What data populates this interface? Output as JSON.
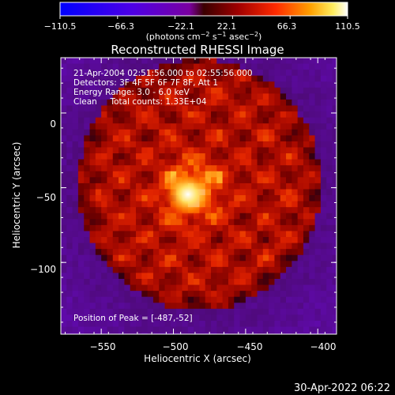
{
  "colorbar": {
    "ticks": [
      "−110.5",
      "−66.3",
      "−22.1",
      "22.1",
      "66.3",
      "110.5"
    ],
    "tick_values": [
      -110.5,
      -66.3,
      -22.1,
      22.1,
      66.3,
      110.5
    ],
    "range": [
      -110.5,
      110.5
    ],
    "units_main": "(photons cm",
    "units_exp1": "−2",
    "units_mid": " s",
    "units_exp2": "−1",
    "units_tail": " asec",
    "units_exp3": "−2",
    "units_close": ")"
  },
  "chart_data": {
    "type": "heatmap",
    "title": "Reconstructed RHESSI Image",
    "xlabel": "Heliocentric X (arcsec)",
    "ylabel": "Heliocentric Y (arcsec)",
    "xlim": [
      -578,
      -387
    ],
    "ylim": [
      -148,
      37
    ],
    "xticks": [
      -550,
      -500,
      -450,
      -400
    ],
    "xtick_labels": [
      "−550",
      "−500",
      "−450",
      "−400"
    ],
    "yticks": [
      0,
      -50,
      -100
    ],
    "ytick_labels": [
      "0",
      "−50",
      "−100"
    ],
    "zlim": [
      -110.5,
      110.5
    ],
    "annotations": [
      "21-Apr-2004 02:51:56.000 to 02:55:56.000",
      "Detectors: 3F 4F 5F 6F 7F 8F, Att 1",
      "Energy Range: 3.0 - 6.0 keV",
      "Clean     Total counts: 1.33E+04"
    ],
    "peak_label": "Position of Peak = [-487,-52]",
    "peak": [
      -487,
      -52
    ],
    "peak_value": 110.5,
    "disk_center": [
      -482,
      -48
    ],
    "disk_radius": 80,
    "colortable": "red-temperature (blue-purple negative, red-yellow-white positive)"
  },
  "footer": {
    "timestamp": "30-Apr-2022 06:22"
  }
}
